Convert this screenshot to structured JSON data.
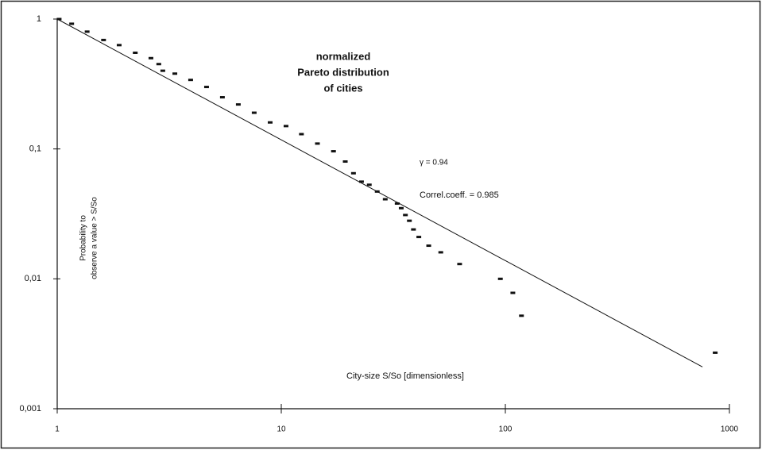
{
  "chart_data": {
    "type": "scatter",
    "title": [
      "normalized",
      "Pareto distribution",
      "of cities"
    ],
    "annotations": [
      "γ = 0.94",
      "Correl.coeff. = 0.985"
    ],
    "xlabel": "City-size S/So [dimensionless]",
    "ylabel": [
      "Probability to",
      "observe a value > S/So"
    ],
    "log_x": true,
    "log_y": true,
    "xlim": [
      1,
      1000
    ],
    "ylim": [
      0.001,
      1
    ],
    "xticks": [
      1,
      10,
      100,
      1000
    ],
    "yticks": [
      {
        "value": 0.001,
        "label": "0,001"
      },
      {
        "value": 0.01,
        "label": "0,01"
      },
      {
        "value": 0.1,
        "label": "0,1"
      },
      1
    ],
    "color": "#111111",
    "x": [
      1.02,
      1.16,
      1.36,
      1.61,
      1.89,
      2.23,
      2.62,
      2.84,
      2.96,
      3.35,
      3.94,
      4.64,
      5.46,
      6.43,
      7.57,
      8.92,
      10.5,
      12.3,
      14.5,
      17.1,
      19.3,
      21.0,
      22.8,
      24.7,
      26.8,
      29.1,
      32.9,
      34.3,
      35.8,
      37.3,
      38.9,
      41.1,
      45.5,
      51.5,
      62.5,
      95.0,
      108,
      118,
      864
    ],
    "values": [
      1,
      0.92,
      0.8,
      0.69,
      0.63,
      0.55,
      0.5,
      0.45,
      0.4,
      0.38,
      0.34,
      0.3,
      0.25,
      0.22,
      0.19,
      0.16,
      0.15,
      0.13,
      0.11,
      0.096,
      0.08,
      0.065,
      0.056,
      0.053,
      0.047,
      0.041,
      0.038,
      0.035,
      0.031,
      0.028,
      0.024,
      0.021,
      0.018,
      0.016,
      0.013,
      0.01,
      0.0078,
      0.0052,
      0.0027
    ],
    "fit_line": {
      "x": [
        1,
        758
      ],
      "values": [
        1,
        0.0021
      ]
    }
  }
}
